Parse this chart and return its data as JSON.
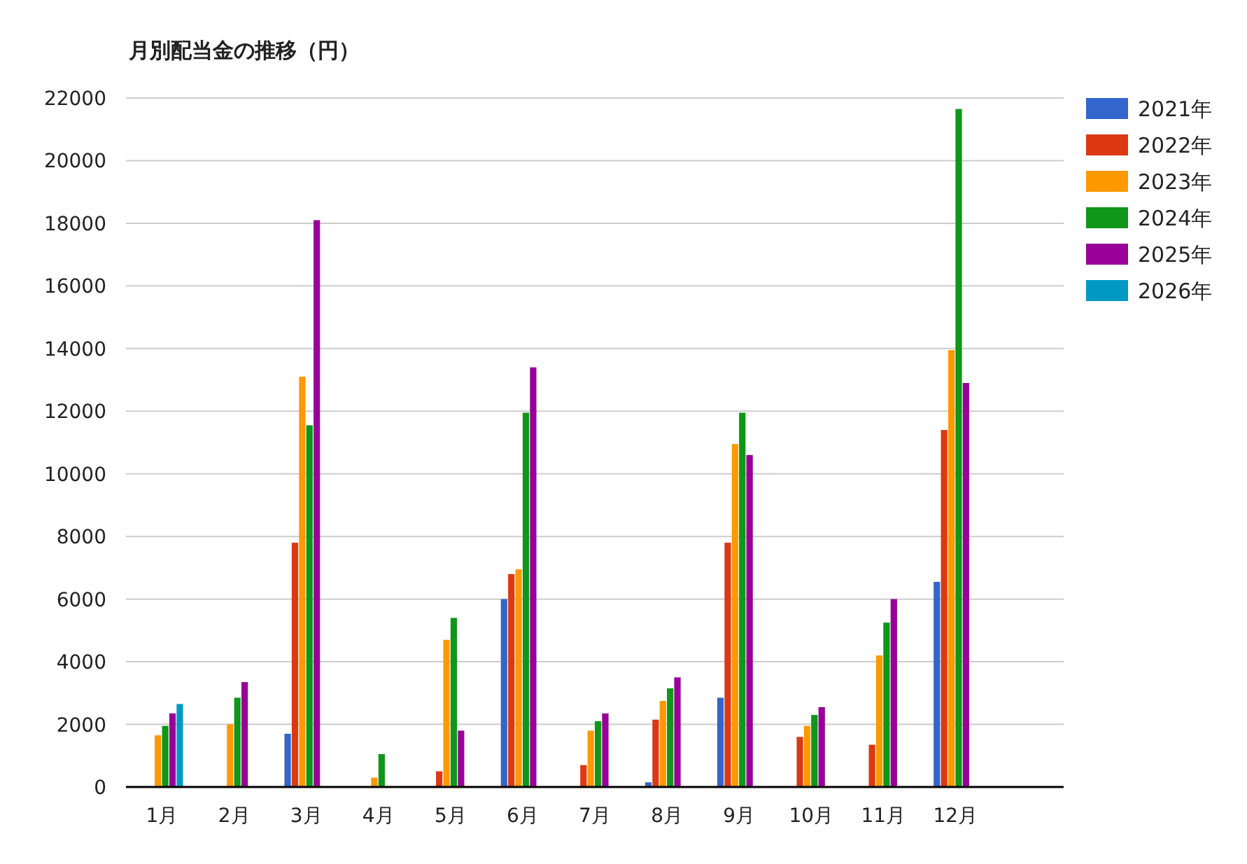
{
  "chart_data": {
    "type": "bar",
    "title": "月別配当金の推移（円）",
    "categories": [
      "1月",
      "2月",
      "3月",
      "4月",
      "5月",
      "6月",
      "7月",
      "8月",
      "9月",
      "10月",
      "11月",
      "12月",
      null
    ],
    "series": [
      {
        "name": "2021年",
        "color": "#3366cc",
        "values": [
          null,
          null,
          1700,
          null,
          null,
          6000,
          null,
          150,
          2850,
          null,
          null,
          6550,
          null
        ]
      },
      {
        "name": "2022年",
        "color": "#dc3912",
        "values": [
          null,
          null,
          7800,
          null,
          500,
          6800,
          700,
          2150,
          7800,
          1600,
          1350,
          11400,
          null
        ]
      },
      {
        "name": "2023年",
        "color": "#ff9900",
        "values": [
          1650,
          2000,
          13100,
          300,
          4700,
          6950,
          1800,
          2750,
          10950,
          1950,
          4200,
          13950,
          null
        ]
      },
      {
        "name": "2024年",
        "color": "#109618",
        "values": [
          1950,
          2850,
          11550,
          1050,
          5400,
          11950,
          2100,
          3150,
          11950,
          2300,
          5250,
          21650,
          null
        ]
      },
      {
        "name": "2025年",
        "color": "#990099",
        "values": [
          2350,
          3350,
          18100,
          null,
          1800,
          13400,
          2350,
          3500,
          10600,
          2550,
          6000,
          12900,
          null
        ]
      },
      {
        "name": "2026年",
        "color": "#0099c6",
        "values": [
          2650,
          null,
          null,
          null,
          null,
          null,
          null,
          null,
          null,
          null,
          null,
          null,
          null
        ]
      }
    ],
    "ylim": [
      0,
      22000
    ],
    "yticks": [
      0,
      2000,
      4000,
      6000,
      8000,
      10000,
      12000,
      14000,
      16000,
      18000,
      20000,
      22000
    ],
    "grid": "y",
    "legend": "right"
  }
}
